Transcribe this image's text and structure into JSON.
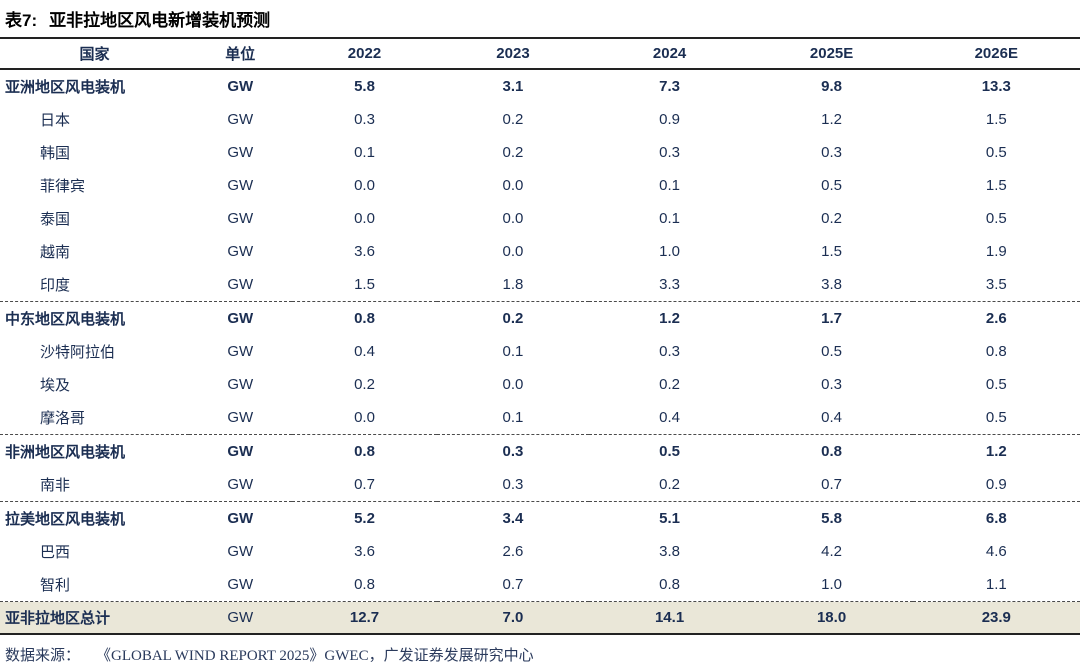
{
  "title": {
    "prefix": "表7:",
    "text": "亚非拉地区风电新增装机预测"
  },
  "colors": {
    "text_navy": "#1b2e52",
    "title_black": "#000000",
    "total_row_bg": "#eae7d8",
    "solid_line": "#222222",
    "dashed_line": "#4a4a4a"
  },
  "table": {
    "columns": [
      "国家",
      "单位",
      "2022",
      "2023",
      "2024",
      "2025E",
      "2026E"
    ],
    "rows": [
      {
        "name": "亚洲地区风电装机",
        "unit": "GW",
        "values": [
          "5.8",
          "3.1",
          "7.3",
          "9.8",
          "13.3"
        ],
        "style": "section",
        "divider_before": false
      },
      {
        "name": "日本",
        "unit": "GW",
        "values": [
          "0.3",
          "0.2",
          "0.9",
          "1.2",
          "1.5"
        ],
        "style": "sub",
        "divider_before": false
      },
      {
        "name": "韩国",
        "unit": "GW",
        "values": [
          "0.1",
          "0.2",
          "0.3",
          "0.3",
          "0.5"
        ],
        "style": "sub",
        "divider_before": false
      },
      {
        "name": "菲律宾",
        "unit": "GW",
        "values": [
          "0.0",
          "0.0",
          "0.1",
          "0.5",
          "1.5"
        ],
        "style": "sub",
        "divider_before": false
      },
      {
        "name": "泰国",
        "unit": "GW",
        "values": [
          "0.0",
          "0.0",
          "0.1",
          "0.2",
          "0.5"
        ],
        "style": "sub",
        "divider_before": false
      },
      {
        "name": "越南",
        "unit": "GW",
        "values": [
          "3.6",
          "0.0",
          "1.0",
          "1.5",
          "1.9"
        ],
        "style": "sub",
        "divider_before": false
      },
      {
        "name": "印度",
        "unit": "GW",
        "values": [
          "1.5",
          "1.8",
          "3.3",
          "3.8",
          "3.5"
        ],
        "style": "sub",
        "divider_before": false
      },
      {
        "name": "中东地区风电装机",
        "unit": "GW",
        "values": [
          "0.8",
          "0.2",
          "1.2",
          "1.7",
          "2.6"
        ],
        "style": "section",
        "divider_before": true
      },
      {
        "name": "沙特阿拉伯",
        "unit": "GW",
        "values": [
          "0.4",
          "0.1",
          "0.3",
          "0.5",
          "0.8"
        ],
        "style": "sub",
        "divider_before": false
      },
      {
        "name": "埃及",
        "unit": "GW",
        "values": [
          "0.2",
          "0.0",
          "0.2",
          "0.3",
          "0.5"
        ],
        "style": "sub",
        "divider_before": false
      },
      {
        "name": "摩洛哥",
        "unit": "GW",
        "values": [
          "0.0",
          "0.1",
          "0.4",
          "0.4",
          "0.5"
        ],
        "style": "sub",
        "divider_before": false
      },
      {
        "name": "非洲地区风电装机",
        "unit": "GW",
        "values": [
          "0.8",
          "0.3",
          "0.5",
          "0.8",
          "1.2"
        ],
        "style": "section",
        "divider_before": true
      },
      {
        "name": "南非",
        "unit": "GW",
        "values": [
          "0.7",
          "0.3",
          "0.2",
          "0.7",
          "0.9"
        ],
        "style": "sub",
        "divider_before": false
      },
      {
        "name": "拉美地区风电装机",
        "unit": "GW",
        "values": [
          "5.2",
          "3.4",
          "5.1",
          "5.8",
          "6.8"
        ],
        "style": "section",
        "divider_before": true
      },
      {
        "name": "巴西",
        "unit": "GW",
        "values": [
          "3.6",
          "2.6",
          "3.8",
          "4.2",
          "4.6"
        ],
        "style": "sub",
        "divider_before": false
      },
      {
        "name": "智利",
        "unit": "GW",
        "values": [
          "0.8",
          "0.7",
          "0.8",
          "1.0",
          "1.1"
        ],
        "style": "sub",
        "divider_before": false
      },
      {
        "name": "亚非拉地区总计",
        "unit": "GW",
        "values": [
          "12.7",
          "7.0",
          "14.1",
          "18.0",
          "23.9"
        ],
        "style": "total",
        "divider_before": true
      }
    ]
  },
  "footer": {
    "source_label": "数据来源：",
    "source_text": "《GLOBAL WIND REPORT 2025》GWEC，广发证券发展研究中心"
  }
}
